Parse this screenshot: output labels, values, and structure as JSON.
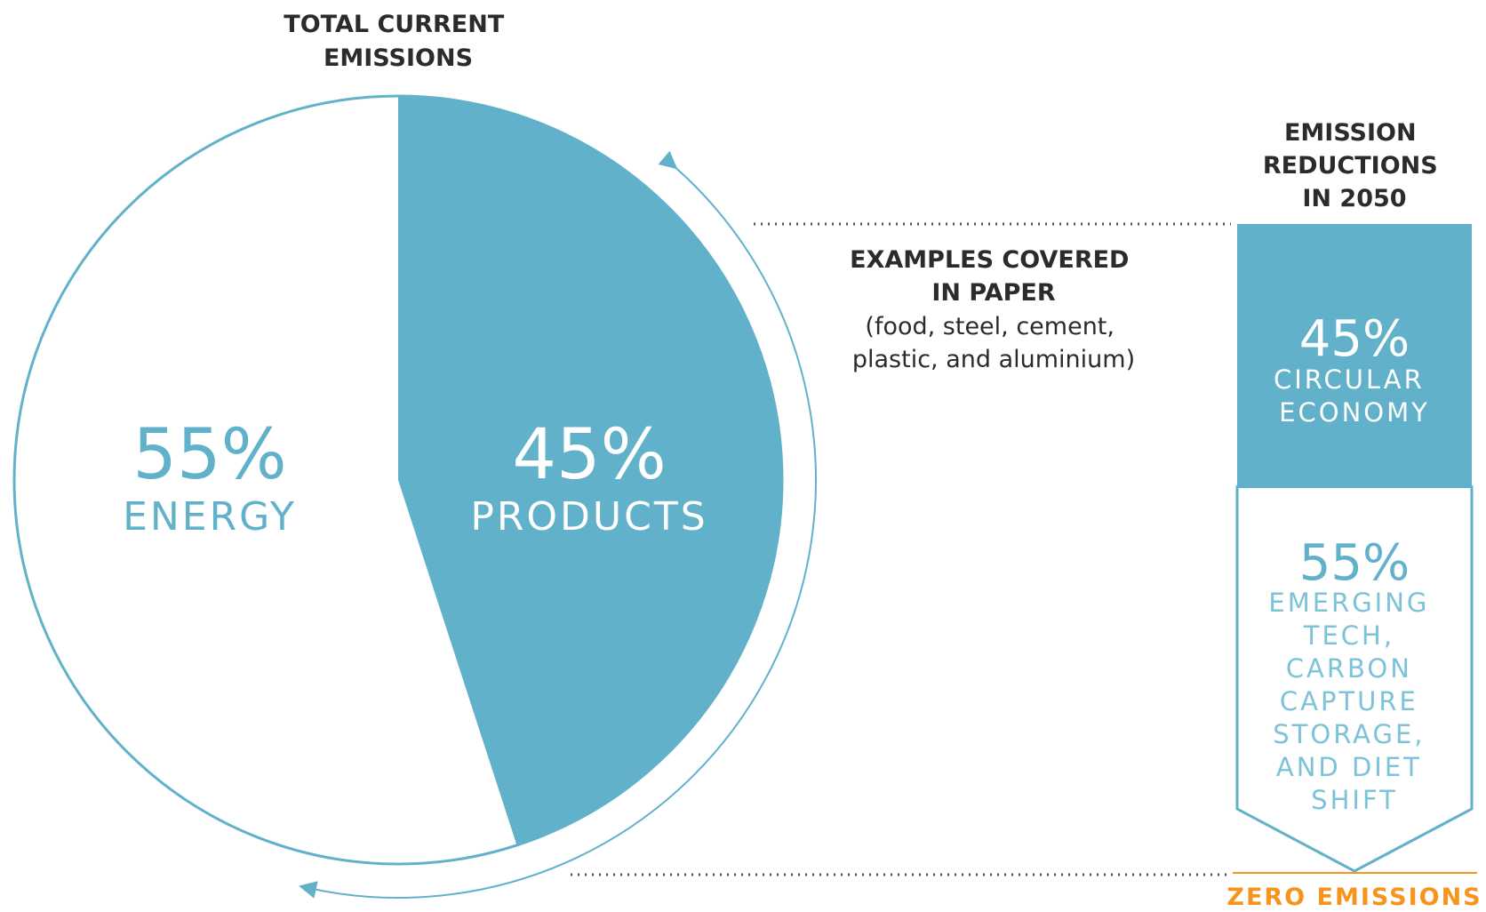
{
  "chart_data": [
    {
      "type": "pie",
      "title": [
        "TOTAL CURRENT",
        "EMISSIONS"
      ],
      "slices": [
        {
          "label": "ENERGY",
          "value": 55,
          "value_label": "55%"
        },
        {
          "label": "PRODUCTS",
          "value": 45,
          "value_label": "45%"
        }
      ]
    },
    {
      "type": "bar",
      "title": [
        "EMISSION",
        "REDUCTIONS",
        "IN 2050"
      ],
      "segments": [
        {
          "label": [
            "CIRCULAR",
            "ECONOMY"
          ],
          "value": 45,
          "value_label": "45%"
        },
        {
          "label": [
            "EMERGING",
            "TECH,",
            "CARBON",
            "CAPTURE",
            "STORAGE,",
            "AND DIET",
            "SHIFT"
          ],
          "value": 55,
          "value_label": "55%"
        }
      ],
      "end_label": "ZERO EMISSIONS"
    }
  ],
  "annotation": {
    "title": [
      "EXAMPLES COVERED",
      "IN PAPER"
    ],
    "detail": [
      "(food, steel, cement,",
      "plastic, and aluminium)"
    ]
  },
  "colors": {
    "accent": "#62b1cb",
    "accent_light": "#7cc3da",
    "text_dark": "#2b2b2b",
    "orange": "#f7941d",
    "white": "#ffffff",
    "dots": "#555555"
  }
}
